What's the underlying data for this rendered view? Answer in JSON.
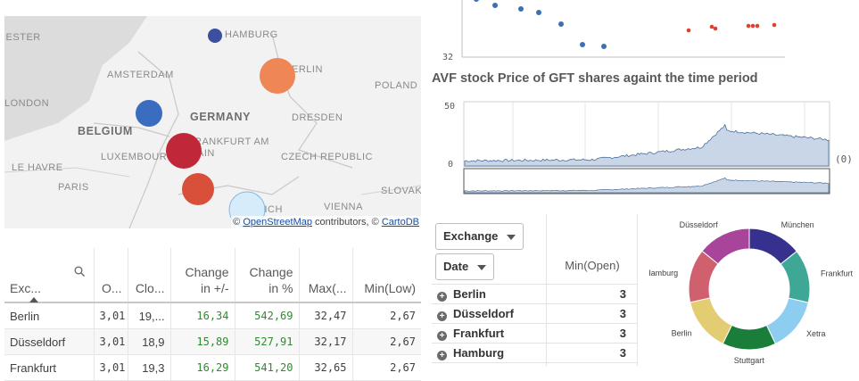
{
  "map": {
    "labels": {
      "hamburg": "HAMBURG",
      "iester": "IESTER",
      "amsterdam": "AMSTERDAM",
      "berlin": "ERLIN",
      "london": "LONDON",
      "poland": "POLAND",
      "germany": "GERMANY",
      "dresden": "DRESDEN",
      "belgium": "BELGIUM",
      "frankfurt": "RANKFURT AM",
      "main": "AIN",
      "luxembourg": "LUXEMBOURG",
      "le_havre": "LE HAVRE",
      "czech": "CZECH REPUBLIC",
      "paris": "PARIS",
      "slovakia": "SLOVAKI",
      "munich": "NICH",
      "vienna": "VIENNA"
    },
    "attribution": {
      "prefix": "©",
      "osm": "OpenStreetMap",
      "middle": "contributors, ©",
      "carto": "CartoDB"
    },
    "bubble_colors": {
      "hamburg": "#3a4fa0",
      "berlin": "#ef8656",
      "dusseldorf": "#3a6dbf",
      "frankfurt": "#c0283a",
      "stuttgart": "#d9503a",
      "munchen": "#d6ecfb"
    }
  },
  "stock_table": {
    "headers": [
      "Exc...",
      "O...",
      "Clo...",
      "Change in +/-",
      "Change in %",
      "Max(...",
      "Min(Low)"
    ],
    "headers_split": {
      "change_abs": [
        "Change",
        "in +/-"
      ],
      "change_pct": [
        "Change",
        "in %"
      ]
    },
    "rows": [
      {
        "exchange": "Berlin",
        "open": "3,01",
        "close": "19,...",
        "change_abs": "16,34",
        "change_pct": "542,69",
        "max": "32,47",
        "min": "2,67"
      },
      {
        "exchange": "Düsseldorf",
        "open": "3,01",
        "close": "18,9",
        "change_abs": "15,89",
        "change_pct": "527,91",
        "max": "32,17",
        "min": "2,67"
      },
      {
        "exchange": "Frankfurt",
        "open": "3,01",
        "close": "19,3",
        "change_abs": "16,29",
        "change_pct": "541,20",
        "max": "32,65",
        "min": "2,67"
      }
    ]
  },
  "scatter": {
    "ytick": "32",
    "blue_color": "#3b6fb6",
    "red_color": "#e0412f"
  },
  "stock_chart": {
    "title": "AVF stock Price of GFT shares againt the time period",
    "yticks": [
      "50",
      "0"
    ],
    "side_label": "(0)",
    "fill_color": "#c8d6e8",
    "line_color": "#4a6f9a"
  },
  "pivot": {
    "dims": [
      "Exchange",
      "Date"
    ],
    "measure_header": "Min(Open)",
    "rows": [
      {
        "label": "Berlin",
        "value": "3"
      },
      {
        "label": "Düsseldorf",
        "value": "3"
      },
      {
        "label": "Frankfurt",
        "value": "3"
      },
      {
        "label": "Hamburg",
        "value": "3"
      }
    ]
  },
  "chart_data": {
    "type": "pie",
    "categories": [
      "München",
      "Frankfurt",
      "Xetra",
      "Stuttgart",
      "Berlin",
      "Hamburg",
      "Düsseldorf"
    ],
    "values": [
      14.3,
      14.3,
      14.3,
      14.3,
      14.3,
      14.3,
      14.2
    ],
    "colors": [
      "#36318e",
      "#3fa796",
      "#8dcdf0",
      "#1b7d3a",
      "#e2cd72",
      "#d1606f",
      "#a8449a"
    ],
    "donut": true
  }
}
